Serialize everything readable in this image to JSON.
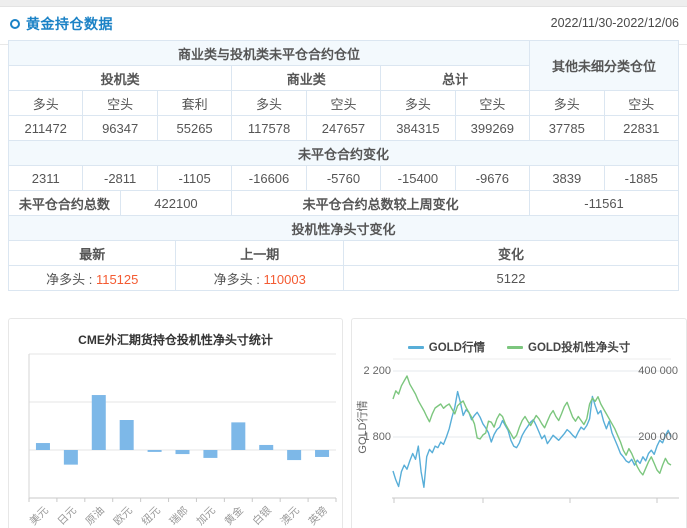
{
  "header": {
    "title": "黄金持仓数据",
    "date_range": "2022/11/30-2022/12/06"
  },
  "colors": {
    "accent_blue": "#1b82c6",
    "positive_orange": "#f45b32",
    "negative_green": "#1fa884",
    "bar_blue": "#7db8e8",
    "line_blue": "#58aed8",
    "line_green": "#7cc67e"
  },
  "table": {
    "group_header_main": "商业类与投机类未平仓合约仓位",
    "group_header_other": "其他未细分类仓位",
    "sub_headers": [
      "投机类",
      "商业类",
      "总计"
    ],
    "col_headers": [
      "多头",
      "空头",
      "套利",
      "多头",
      "空头",
      "多头",
      "空头",
      "多头",
      "空头"
    ],
    "positions": [
      "211472",
      "96347",
      "55265",
      "117578",
      "247657",
      "384315",
      "399269",
      "37785",
      "22831"
    ],
    "change_header": "未平仓合约变化",
    "changes": [
      "2311",
      "-2811",
      "-1105",
      "-16606",
      "-5760",
      "-15400",
      "-9676",
      "3839",
      "-1885"
    ],
    "total_label": "未平仓合约总数",
    "total_value": "422100",
    "total_change_label": "未平仓合约总数较上周变化",
    "total_change_value": "-11561",
    "net_section_header": "投机性净头寸变化",
    "net_headers": [
      "最新",
      "上一期",
      "变化"
    ],
    "net_latest_label": "净多头 : ",
    "net_latest_value": "115125",
    "net_prev_label": "净多头 : ",
    "net_prev_value": "110003",
    "net_change_value": "5122"
  },
  "chart_data": [
    {
      "type": "bar",
      "title": "CME外汇期货持仓投机性净头寸统计",
      "categories": [
        "美元",
        "日元",
        "原油",
        "欧元",
        "纽元",
        "瑞郎",
        "加元",
        "黄金",
        "白银",
        "澳元",
        "英镑"
      ],
      "values": [
        29000,
        -61000,
        229000,
        125000,
        -8000,
        -17000,
        -33000,
        115125,
        21000,
        -42000,
        -29000
      ],
      "xlabel": "",
      "ylabel": "",
      "ylim": [
        -200000,
        400000
      ],
      "grid_step": 200000,
      "grid": true,
      "legend_position": "none",
      "bar_color": "#7db8e8"
    },
    {
      "type": "line",
      "title": "",
      "legend": [
        "GOLD行情",
        "GOLD投机性净头寸"
      ],
      "legend_position": "top",
      "y_axis_name": "GOLD行情",
      "left_ticks": [
        "2 200",
        "1 800"
      ],
      "left_tick_values": [
        2200,
        1800
      ],
      "right_ticks": [
        "400 000",
        "200 000"
      ],
      "right_tick_values": [
        400000,
        200000
      ],
      "grid": true,
      "series": [
        {
          "name": "GOLD行情",
          "axis": "left",
          "color": "#58aed8",
          "values": [
            1594,
            1540,
            1500,
            1590,
            1630,
            1605,
            1655,
            1700,
            1665,
            1745,
            1590,
            1495,
            1680,
            1725,
            1705,
            1745,
            1735,
            1770,
            1755,
            1800,
            1850,
            1920,
            1980,
            2075,
            2010,
            1930,
            1965,
            1950,
            1905,
            1930,
            1950,
            1920,
            1880,
            1855,
            1825,
            1770,
            1815,
            1845,
            1860,
            1900,
            1870,
            1840,
            1780,
            1745,
            1735,
            1765,
            1810,
            1840,
            1865,
            1890,
            1905,
            1870,
            1830,
            1790,
            1810,
            1760,
            1785,
            1810,
            1795,
            1780,
            1800,
            1820,
            1845,
            1830,
            1810,
            1795,
            1830,
            1860,
            1845,
            1870,
            1910,
            2046,
            1990,
            1940,
            1960,
            1895,
            1850,
            1895,
            1825,
            1785,
            1745,
            1700,
            1680,
            1655,
            1645,
            1665,
            1630,
            1660,
            1640,
            1680,
            1655,
            1700,
            1720,
            1695,
            1745,
            1780,
            1765,
            1810,
            1840,
            1800
          ]
        },
        {
          "name": "GOLD投机性净头寸",
          "axis": "right",
          "color": "#7cc67e",
          "values": [
            315000,
            340000,
            330000,
            355000,
            370000,
            385000,
            360000,
            345000,
            330000,
            310000,
            295000,
            280000,
            262000,
            246000,
            270000,
            288000,
            294000,
            300000,
            287000,
            295000,
            300000,
            285000,
            270000,
            295000,
            303000,
            309000,
            290000,
            275000,
            260000,
            240000,
            197000,
            194000,
            206000,
            212000,
            248000,
            245000,
            230000,
            255000,
            270000,
            262000,
            240000,
            225000,
            210000,
            195000,
            205000,
            230000,
            250000,
            262000,
            248000,
            235000,
            250000,
            265000,
            255000,
            240000,
            228000,
            248000,
            268000,
            280000,
            262000,
            250000,
            270000,
            292000,
            305000,
            282000,
            260000,
            248000,
            262000,
            250000,
            238000,
            255000,
            300000,
            318000,
            308000,
            322000,
            300000,
            285000,
            270000,
            255000,
            240000,
            225000,
            205000,
            185000,
            160000,
            145000,
            165000,
            150000,
            130000,
            110000,
            95000,
            85000,
            105000,
            125000,
            140000,
            120000,
            100000,
            90000,
            115000,
            135000,
            120000,
            115125
          ]
        }
      ]
    }
  ]
}
